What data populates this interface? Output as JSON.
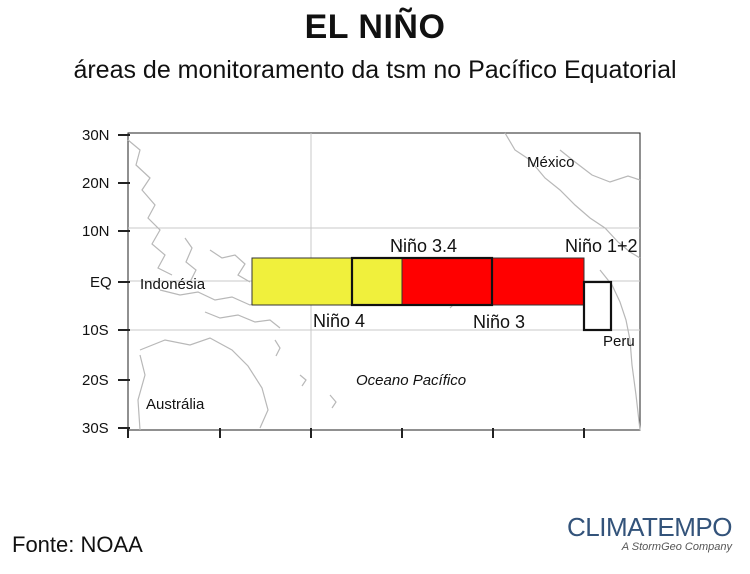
{
  "title": "EL NIÑO",
  "subtitle": "áreas de monitoramento da tsm no Pacífico Equatorial",
  "map": {
    "lat_labels": [
      "30N",
      "20N",
      "10N",
      "EQ",
      "10S",
      "20S",
      "30S"
    ],
    "places": {
      "mexico": "México",
      "indonesia": "Indonésia",
      "australia": "Austrália",
      "peru": "Peru",
      "ocean": "Oceano Pacífico"
    },
    "regions": {
      "nino4": {
        "label": "Niño 4",
        "color": "#f0f03c"
      },
      "nino34": {
        "label": "Niño 3.4",
        "color": "#ff0000"
      },
      "nino3": {
        "label": "Niño 3",
        "color": "#ff0000"
      },
      "nino12": {
        "label": "Niño 1+2",
        "color": "#ffffff"
      }
    }
  },
  "source": "Fonte: NOAA",
  "logo": {
    "main": "CLIMATEMPO",
    "sub": "A StormGeo Company"
  }
}
